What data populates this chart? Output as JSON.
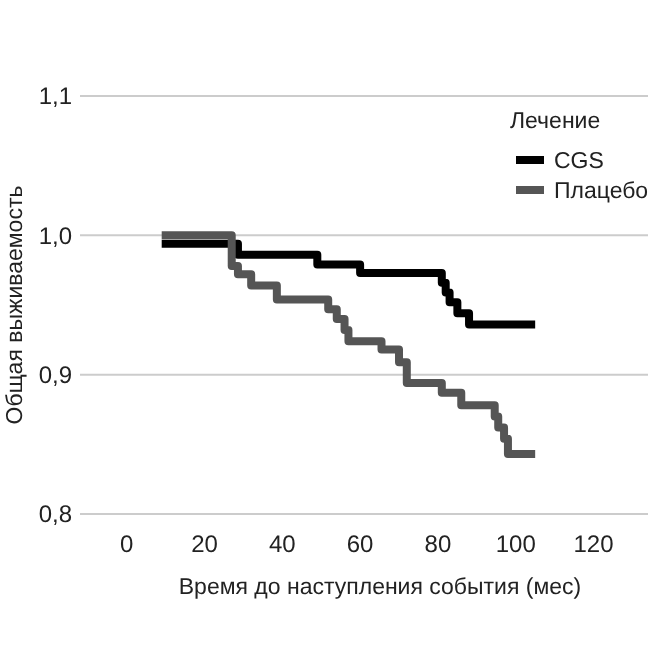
{
  "chart_data": {
    "type": "step",
    "xlabel": "Время до наступления события (мес)",
    "ylabel": "Общая выживаемость",
    "legend_title": "Лечение",
    "xlim": [
      -12,
      134
    ],
    "xticks": [
      0,
      20,
      40,
      60,
      80,
      100,
      120
    ],
    "ylim": [
      0.8,
      1.1
    ],
    "yticks": [
      {
        "value": 0.8,
        "label": "0,8"
      },
      {
        "value": 0.9,
        "label": "0,9"
      },
      {
        "value": 1.0,
        "label": "1,0"
      },
      {
        "value": 1.1,
        "label": "1,1"
      }
    ],
    "grid": "y",
    "legend": "top right",
    "series": [
      {
        "name": "CGS",
        "color": "#000000",
        "x": [
          9,
          28.6,
          49,
          60,
          81,
          82,
          83,
          85,
          88,
          105
        ],
        "values": [
          0.994,
          0.986,
          0.979,
          0.973,
          0.966,
          0.959,
          0.952,
          0.944,
          0.936,
          0.936
        ]
      },
      {
        "name": "Плацебо",
        "color": "#555555",
        "x": [
          9,
          27,
          28.6,
          32,
          38.6,
          51.8,
          54,
          56,
          57,
          65.5,
          70,
          72,
          81,
          86,
          94.6,
          95.5,
          97,
          98,
          105
        ],
        "values": [
          1.0,
          0.978,
          0.972,
          0.964,
          0.954,
          0.947,
          0.94,
          0.932,
          0.924,
          0.918,
          0.909,
          0.894,
          0.887,
          0.878,
          0.87,
          0.862,
          0.854,
          0.843,
          0.843
        ]
      }
    ]
  }
}
